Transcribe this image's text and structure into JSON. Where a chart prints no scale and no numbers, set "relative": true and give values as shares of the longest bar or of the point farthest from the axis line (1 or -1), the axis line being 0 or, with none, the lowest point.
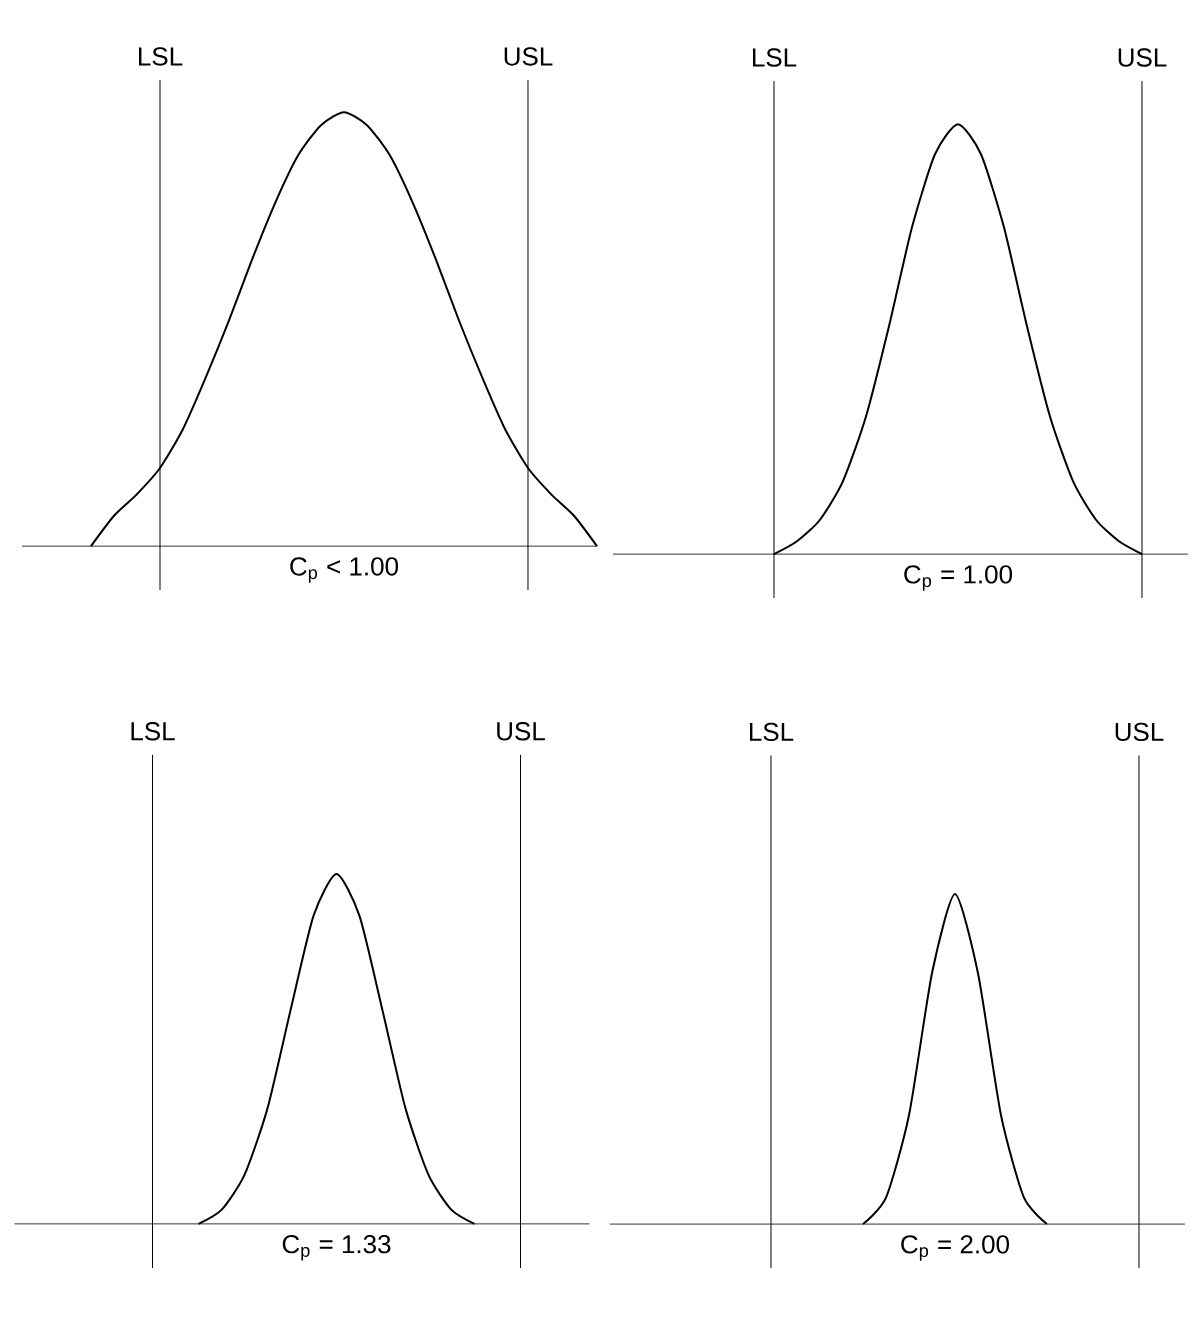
{
  "chart_data": [
    {
      "type": "line",
      "relative": true,
      "xlabel": "C$_{p}$ < 1.00",
      "color": "#000000",
      "categories": [
        null,
        null,
        null,
        null,
        null,
        null,
        null,
        null,
        null,
        null,
        null,
        null,
        null,
        null,
        null,
        null,
        null,
        null,
        null,
        null,
        null,
        null,
        null,
        null,
        null,
        null
      ],
      "values": [
        null,
        null,
        null,
        0,
        0.07,
        0.12,
        0.18,
        0.27,
        0.39,
        0.52,
        0.66,
        0.79,
        0.9,
        0.97,
        1,
        0.97,
        0.9,
        0.79,
        0.66,
        0.52,
        0.39,
        0.27,
        0.18,
        0.12,
        0.07,
        0
      ],
      "annotations": [
        "LSL",
        "USL"
      ]
    },
    {
      "type": "line",
      "relative": true,
      "xlabel": "C$_{p}$ = 1.00",
      "color": "#000000",
      "categories": [
        null,
        null,
        null,
        null,
        null,
        null,
        null,
        null,
        null,
        null,
        null,
        null,
        null,
        null,
        null,
        null,
        null,
        null,
        null,
        null,
        null,
        null,
        null,
        null,
        null,
        null
      ],
      "values": [
        null,
        null,
        null,
        null,
        null,
        null,
        null,
        0,
        0.03,
        0.08,
        0.17,
        0.32,
        0.53,
        0.76,
        0.93,
        1,
        0.93,
        0.76,
        0.53,
        0.32,
        0.17,
        0.08,
        0.03,
        0,
        null,
        null
      ],
      "annotations": [
        "LSL",
        "USL"
      ]
    },
    {
      "type": "line",
      "relative": true,
      "xlabel": "C$_{p}$ = 1.33",
      "color": "#000000",
      "categories": [
        null,
        null,
        null,
        null,
        null,
        null,
        null,
        null,
        null,
        null,
        null,
        null,
        null,
        null,
        null,
        null,
        null,
        null,
        null,
        null,
        null,
        null,
        null,
        null,
        null,
        null
      ],
      "values": [
        null,
        null,
        null,
        null,
        null,
        null,
        null,
        null,
        0,
        0.04,
        0.14,
        0.33,
        0.61,
        0.88,
        1,
        0.88,
        0.61,
        0.33,
        0.14,
        0.04,
        0,
        null,
        null,
        null,
        null,
        null
      ],
      "annotations": [
        "LSL",
        "USL"
      ]
    },
    {
      "type": "line",
      "relative": true,
      "xlabel": "C$_{p}$ = 2.00",
      "color": "#000000",
      "categories": [
        null,
        null,
        null,
        null,
        null,
        null,
        null,
        null,
        null,
        null,
        null,
        null,
        null,
        null,
        null,
        null,
        null,
        null,
        null,
        null,
        null,
        null,
        null,
        null,
        null,
        null
      ],
      "values": [
        null,
        null,
        null,
        null,
        null,
        null,
        null,
        null,
        null,
        null,
        null,
        0,
        0.08,
        0.33,
        0.76,
        1,
        0.76,
        0.33,
        0.08,
        0,
        null,
        null,
        null,
        null,
        null,
        null
      ],
      "annotations": [
        "LSL",
        "USL"
      ]
    }
  ]
}
